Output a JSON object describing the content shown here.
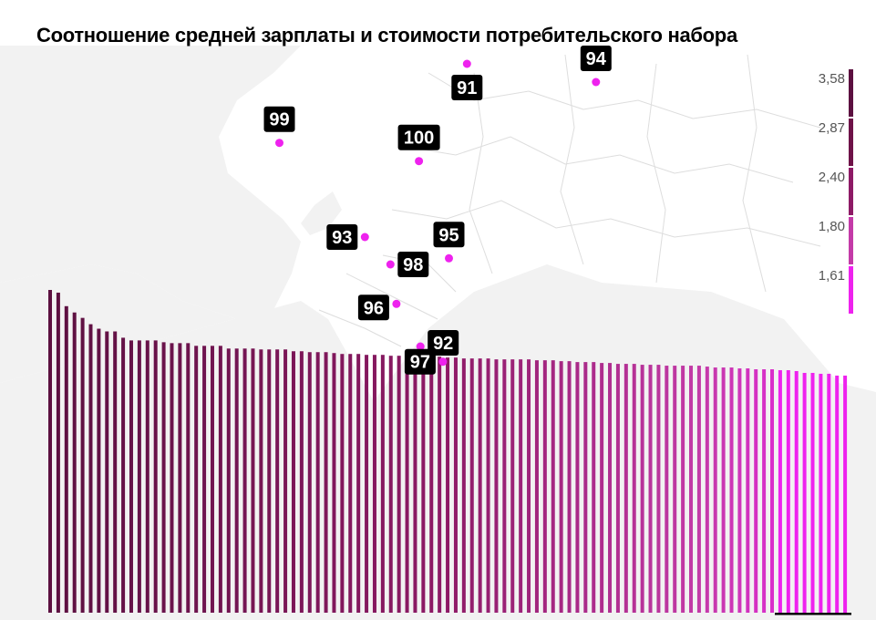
{
  "title": "Соотношение средней зарплаты и стоимости потребительского набора",
  "chart_data": {
    "type": "bar",
    "values": [
      3.58,
      3.55,
      3.4,
      3.33,
      3.27,
      3.2,
      3.15,
      3.12,
      3.12,
      3.05,
      3.02,
      3.02,
      3.02,
      3.02,
      3.0,
      2.99,
      2.99,
      2.99,
      2.96,
      2.96,
      2.96,
      2.96,
      2.93,
      2.93,
      2.93,
      2.93,
      2.92,
      2.92,
      2.92,
      2.92,
      2.9,
      2.9,
      2.89,
      2.89,
      2.89,
      2.88,
      2.87,
      2.87,
      2.87,
      2.86,
      2.86,
      2.86,
      2.85,
      2.85,
      2.85,
      2.84,
      2.84,
      2.84,
      2.84,
      2.83,
      2.83,
      2.82,
      2.82,
      2.82,
      2.82,
      2.81,
      2.81,
      2.81,
      2.81,
      2.81,
      2.8,
      2.8,
      2.8,
      2.79,
      2.79,
      2.78,
      2.78,
      2.78,
      2.77,
      2.77,
      2.76,
      2.76,
      2.76,
      2.75,
      2.75,
      2.75,
      2.74,
      2.74,
      2.74,
      2.74,
      2.74,
      2.73,
      2.72,
      2.72,
      2.72,
      2.71,
      2.71,
      2.7,
      2.7,
      2.7,
      2.69,
      2.69,
      2.68,
      2.66,
      2.66,
      2.65,
      2.65,
      2.63,
      2.63
    ],
    "color_scale": {
      "ticks": [
        "3,58",
        "2,87",
        "2,40",
        "1,80",
        "1,61"
      ],
      "colors": [
        "#5c1040",
        "#6e1248",
        "#8e1a66",
        "#c43aa8",
        "#ee22ee"
      ]
    },
    "markers": [
      {
        "label": "91",
        "lon": 40.6,
        "lat": 64.55
      },
      {
        "label": "94",
        "lon": 44.9,
        "lat": 64.25
      },
      {
        "label": "99",
        "lon": 34.35,
        "lat": 63.25
      },
      {
        "label": "100",
        "lon": 39.0,
        "lat": 62.95
      },
      {
        "label": "93",
        "lon": 37.2,
        "lat": 61.7
      },
      {
        "label": "95",
        "lon": 40.0,
        "lat": 61.35
      },
      {
        "label": "98",
        "lon": 38.05,
        "lat": 61.25
      },
      {
        "label": "96",
        "lon": 38.25,
        "lat": 60.6
      },
      {
        "label": "92",
        "lon": 39.05,
        "lat": 59.9
      },
      {
        "label": "97",
        "lon": 39.8,
        "lat": 59.65
      }
    ],
    "ylim": [
      0,
      3.58
    ]
  },
  "colors": {
    "land": "#f2f2f2",
    "land_highlight": "#ffffff",
    "border": "#dddddd",
    "marker": "#ee22ee",
    "label_bg": "#000000"
  }
}
